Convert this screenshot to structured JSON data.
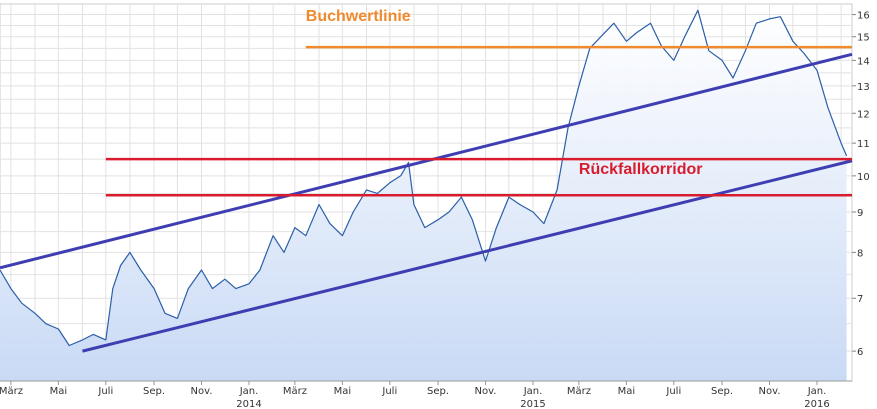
{
  "chart_data": {
    "type": "line",
    "title": "",
    "xlabel": "",
    "ylabel": "",
    "x_range": [
      "2013-02-15",
      "2016-02-15"
    ],
    "ylim": [
      5.5,
      16.5
    ],
    "y_scale": "log",
    "grid": true,
    "y_axis_position": "right",
    "x_tick_labels": [
      {
        "date": "2013-03-01",
        "label": "März",
        "year": ""
      },
      {
        "date": "2013-05-01",
        "label": "Mai",
        "year": ""
      },
      {
        "date": "2013-07-01",
        "label": "Juli",
        "year": ""
      },
      {
        "date": "2013-09-01",
        "label": "Sep.",
        "year": ""
      },
      {
        "date": "2013-11-01",
        "label": "Nov.",
        "year": ""
      },
      {
        "date": "2014-01-01",
        "label": "Jan.",
        "year": "2014"
      },
      {
        "date": "2014-03-01",
        "label": "März",
        "year": ""
      },
      {
        "date": "2014-05-01",
        "label": "Mai",
        "year": ""
      },
      {
        "date": "2014-07-01",
        "label": "Juli",
        "year": ""
      },
      {
        "date": "2014-09-01",
        "label": "Sep.",
        "year": ""
      },
      {
        "date": "2014-11-01",
        "label": "Nov.",
        "year": ""
      },
      {
        "date": "2015-01-01",
        "label": "Jan.",
        "year": "2015"
      },
      {
        "date": "2015-03-01",
        "label": "März",
        "year": ""
      },
      {
        "date": "2015-05-01",
        "label": "Mai",
        "year": ""
      },
      {
        "date": "2015-07-01",
        "label": "Juli",
        "year": ""
      },
      {
        "date": "2015-09-01",
        "label": "Sep.",
        "year": ""
      },
      {
        "date": "2015-11-01",
        "label": "Nov.",
        "year": ""
      },
      {
        "date": "2016-01-01",
        "label": "Jan.",
        "year": "2016"
      }
    ],
    "y_ticks": [
      6,
      7,
      8,
      9,
      10,
      11,
      12,
      13,
      14,
      15,
      16
    ],
    "series": [
      {
        "color": "#2b5fa8",
        "fill": "#c9daf5",
        "points": [
          [
            "2013-02-15",
            7.6
          ],
          [
            "2013-03-01",
            7.2
          ],
          [
            "2013-03-15",
            6.9
          ],
          [
            "2013-04-01",
            6.7
          ],
          [
            "2013-04-15",
            6.5
          ],
          [
            "2013-05-01",
            6.4
          ],
          [
            "2013-05-15",
            6.1
          ],
          [
            "2013-06-01",
            6.2
          ],
          [
            "2013-06-15",
            6.3
          ],
          [
            "2013-07-01",
            6.2
          ],
          [
            "2013-07-10",
            7.2
          ],
          [
            "2013-07-20",
            7.7
          ],
          [
            "2013-08-01",
            8.0
          ],
          [
            "2013-08-15",
            7.6
          ],
          [
            "2013-09-01",
            7.2
          ],
          [
            "2013-09-15",
            6.7
          ],
          [
            "2013-10-01",
            6.6
          ],
          [
            "2013-10-15",
            7.2
          ],
          [
            "2013-11-01",
            7.6
          ],
          [
            "2013-11-15",
            7.2
          ],
          [
            "2013-12-01",
            7.4
          ],
          [
            "2013-12-15",
            7.2
          ],
          [
            "2014-01-01",
            7.3
          ],
          [
            "2014-01-15",
            7.6
          ],
          [
            "2014-02-01",
            8.4
          ],
          [
            "2014-02-15",
            8.0
          ],
          [
            "2014-03-01",
            8.6
          ],
          [
            "2014-03-15",
            8.4
          ],
          [
            "2014-04-01",
            9.2
          ],
          [
            "2014-04-15",
            8.7
          ],
          [
            "2014-05-01",
            8.4
          ],
          [
            "2014-05-15",
            9.0
          ],
          [
            "2014-06-01",
            9.6
          ],
          [
            "2014-06-15",
            9.5
          ],
          [
            "2014-07-01",
            9.8
          ],
          [
            "2014-07-15",
            10.0
          ],
          [
            "2014-07-25",
            10.4
          ],
          [
            "2014-08-01",
            9.2
          ],
          [
            "2014-08-15",
            8.6
          ],
          [
            "2014-09-01",
            8.8
          ],
          [
            "2014-09-15",
            9.0
          ],
          [
            "2014-10-01",
            9.4
          ],
          [
            "2014-10-15",
            8.8
          ],
          [
            "2014-11-01",
            7.8
          ],
          [
            "2014-11-15",
            8.6
          ],
          [
            "2014-12-01",
            9.4
          ],
          [
            "2014-12-15",
            9.2
          ],
          [
            "2015-01-01",
            9.0
          ],
          [
            "2015-01-15",
            8.7
          ],
          [
            "2015-02-01",
            9.6
          ],
          [
            "2015-02-15",
            11.5
          ],
          [
            "2015-03-01",
            13.0
          ],
          [
            "2015-03-15",
            14.5
          ],
          [
            "2015-04-01",
            15.1
          ],
          [
            "2015-04-15",
            15.6
          ],
          [
            "2015-05-01",
            14.8
          ],
          [
            "2015-05-15",
            15.2
          ],
          [
            "2015-06-01",
            15.6
          ],
          [
            "2015-06-15",
            14.6
          ],
          [
            "2015-07-01",
            14.0
          ],
          [
            "2015-07-15",
            15.0
          ],
          [
            "2015-08-01",
            16.2
          ],
          [
            "2015-08-15",
            14.4
          ],
          [
            "2015-09-01",
            14.0
          ],
          [
            "2015-09-15",
            13.3
          ],
          [
            "2015-10-01",
            14.4
          ],
          [
            "2015-10-15",
            15.6
          ],
          [
            "2015-11-01",
            15.8
          ],
          [
            "2015-11-15",
            15.9
          ],
          [
            "2015-12-01",
            14.8
          ],
          [
            "2015-12-15",
            14.3
          ],
          [
            "2016-01-01",
            13.6
          ],
          [
            "2016-01-15",
            12.2
          ],
          [
            "2016-02-01",
            11.0
          ],
          [
            "2016-02-08",
            10.6
          ]
        ]
      }
    ],
    "trend_lines": [
      {
        "color": "#3e3eb2",
        "from": [
          "2013-02-15",
          7.65
        ],
        "to": [
          "2016-02-15",
          14.25
        ]
      },
      {
        "color": "#3e3eb2",
        "from": [
          "2013-06-01",
          6.0
        ],
        "to": [
          "2016-02-15",
          10.45
        ]
      }
    ],
    "horizontal_lines": [
      {
        "color": "#f08a2e",
        "y": 14.55,
        "from": "2014-03-15",
        "to": "2016-02-15"
      },
      {
        "color": "#d81c2e",
        "y": 10.5,
        "from": "2013-07-01",
        "to": "2016-02-15"
      },
      {
        "color": "#d81c2e",
        "y": 9.45,
        "from": "2013-07-01",
        "to": "2016-02-15"
      }
    ],
    "annotations": [
      {
        "text": "Buchwertlinie",
        "color": "#f08a2e",
        "date": "2014-03-15",
        "y": 15.7
      },
      {
        "text": "Rückfallkorridor",
        "color": "#d81c2e",
        "date": "2015-03-01",
        "y": 10.05
      }
    ]
  }
}
